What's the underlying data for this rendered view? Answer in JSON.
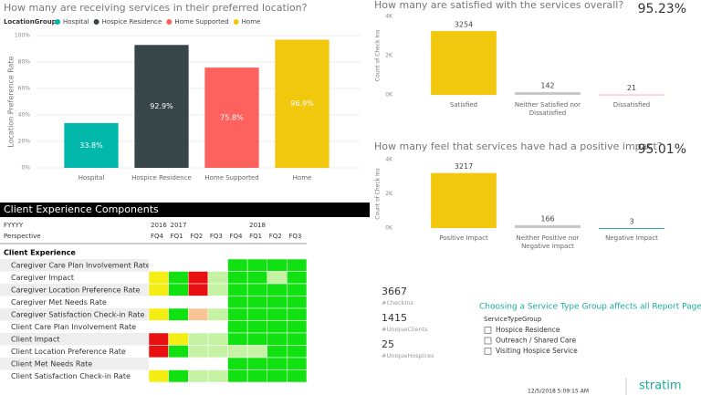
{
  "chart_data": [
    {
      "type": "bar",
      "title": "How many are receiving services in their preferred location?",
      "legend_title": "LocationGroup",
      "y_label": "Location Preference Rate",
      "categories": [
        "Hospital",
        "Hospice Residence",
        "Home Supported",
        "Home"
      ],
      "values": [
        33.8,
        92.9,
        75.8,
        96.9
      ],
      "value_labels": [
        "33.8%",
        "92.9%",
        "75.8%",
        "96.9%"
      ],
      "colors": [
        "#01B8AA",
        "#374649",
        "#FD625E",
        "#F2C80F"
      ],
      "ylim": [
        0,
        100
      ],
      "yticks": [
        {
          "value": 0,
          "label": "0%"
        },
        {
          "value": 20,
          "label": "20%"
        },
        {
          "value": 40,
          "label": "40%"
        },
        {
          "value": 60,
          "label": "60%"
        },
        {
          "value": 80,
          "label": "80%"
        },
        {
          "value": 100,
          "label": "100%"
        }
      ],
      "grid": true,
      "legend": "top-left"
    },
    {
      "type": "bar",
      "title": "How many are satisfied with the services overall?",
      "kpi": "95.23%",
      "y_label": "Count of Check Ins",
      "categories": [
        "Satisfied",
        "Neither Satisfied nor Dissatisfied",
        "Dissatisfied"
      ],
      "values": [
        3254,
        142,
        21
      ],
      "colors": [
        "#F2C80F",
        "#C8C8C8",
        "#F9B5B3"
      ],
      "ylim": [
        0,
        4000
      ],
      "yticks": [
        {
          "value": 0,
          "label": "0K"
        },
        {
          "value": 2000,
          "label": "2K"
        },
        {
          "value": 4000,
          "label": "4K"
        }
      ],
      "grid": false
    },
    {
      "type": "bar",
      "title": "How many feel that services have had a positive impact?",
      "kpi": "95.01%",
      "y_label": "Count of Check Ins",
      "categories": [
        "Positive Impact",
        "Neither Positive nor Negative Impact",
        "Negative Impact"
      ],
      "values": [
        3217,
        166,
        3
      ],
      "colors": [
        "#F2C80F",
        "#C8C8C8",
        "#3599B8"
      ],
      "ylim": [
        0,
        4000
      ],
      "yticks": [
        {
          "value": 0,
          "label": "0K"
        },
        {
          "value": 2000,
          "label": "2K"
        },
        {
          "value": 4000,
          "label": "4K"
        }
      ],
      "grid": false
    }
  ],
  "table": {
    "title": "Client Experience Components",
    "row_header_labels": [
      "FYYYY",
      "Perspective"
    ],
    "years": [
      "2016",
      "2017",
      "2018"
    ],
    "quarters": [
      "FQ4",
      "FQ1",
      "FQ2",
      "FQ3",
      "FQ4",
      "FQ1",
      "FQ2",
      "FQ3"
    ],
    "group": "Client Experience",
    "rows": [
      {
        "name": "Caregiver Care Plan Involvement Rate",
        "colors": [
          "#ffffff",
          "#ffffff",
          "#ffffff",
          "#ffffff",
          "#11E011",
          "#11E011",
          "#11E011",
          "#11E011"
        ]
      },
      {
        "name": "Caregiver Impact",
        "colors": [
          "#F5EE14",
          "#11E011",
          "#E81010",
          "#C6F2A4",
          "#11E011",
          "#11E011",
          "#C6F2A4",
          "#11E011"
        ]
      },
      {
        "name": "Caregiver Location Preference Rate",
        "colors": [
          "#F5EE14",
          "#11E011",
          "#E81010",
          "#C6F2A4",
          "#11E011",
          "#11E011",
          "#11E011",
          "#11E011"
        ]
      },
      {
        "name": "Caregiver Met Needs Rate",
        "colors": [
          "#ffffff",
          "#ffffff",
          "#ffffff",
          "#ffffff",
          "#11E011",
          "#11E011",
          "#11E011",
          "#11E011"
        ]
      },
      {
        "name": "Caregiver Satisfaction Check-in Rate",
        "colors": [
          "#F5EE14",
          "#11E011",
          "#F8C496",
          "#C6F2A4",
          "#11E011",
          "#11E011",
          "#11E011",
          "#11E011"
        ]
      },
      {
        "name": "Client Care Plan Involvement Rate",
        "colors": [
          "#ffffff",
          "#ffffff",
          "#ffffff",
          "#ffffff",
          "#11E011",
          "#11E011",
          "#11E011",
          "#11E011"
        ]
      },
      {
        "name": "Client Impact",
        "colors": [
          "#E81010",
          "#F5EE14",
          "#C6F2A4",
          "#C6F2A4",
          "#11E011",
          "#11E011",
          "#11E011",
          "#11E011"
        ]
      },
      {
        "name": "Client Location Preference Rate",
        "colors": [
          "#E81010",
          "#11E011",
          "#C6F2A4",
          "#C6F2A4",
          "#C6F2A4",
          "#C6F2A4",
          "#11E011",
          "#11E011"
        ]
      },
      {
        "name": "Client Met Needs Rate",
        "colors": [
          "#ffffff",
          "#ffffff",
          "#ffffff",
          "#ffffff",
          "#11E011",
          "#11E011",
          "#11E011",
          "#11E011"
        ]
      },
      {
        "name": "Client Satisfaction Check-in Rate",
        "colors": [
          "#F5EE14",
          "#11E011",
          "#C6F2A4",
          "#C6F2A4",
          "#11E011",
          "#11E011",
          "#11E011",
          "#11E011"
        ]
      }
    ]
  },
  "kpis": [
    {
      "value": "3667",
      "label": "#CheckIns"
    },
    {
      "value": "1415",
      "label": "#UniqueClients"
    },
    {
      "value": "25",
      "label": "#UniqueHospices"
    }
  ],
  "slicer": {
    "heading": "Choosing a Service Type Group affects all Report Pages",
    "field": "ServiceTypeGroup",
    "options": [
      "Hospice Residence",
      "Outreach / Shared Care",
      "Visiting Hospice Service"
    ]
  },
  "footer": {
    "timestamp": "12/5/2018 5:09:15 AM",
    "logo": "stratim"
  }
}
